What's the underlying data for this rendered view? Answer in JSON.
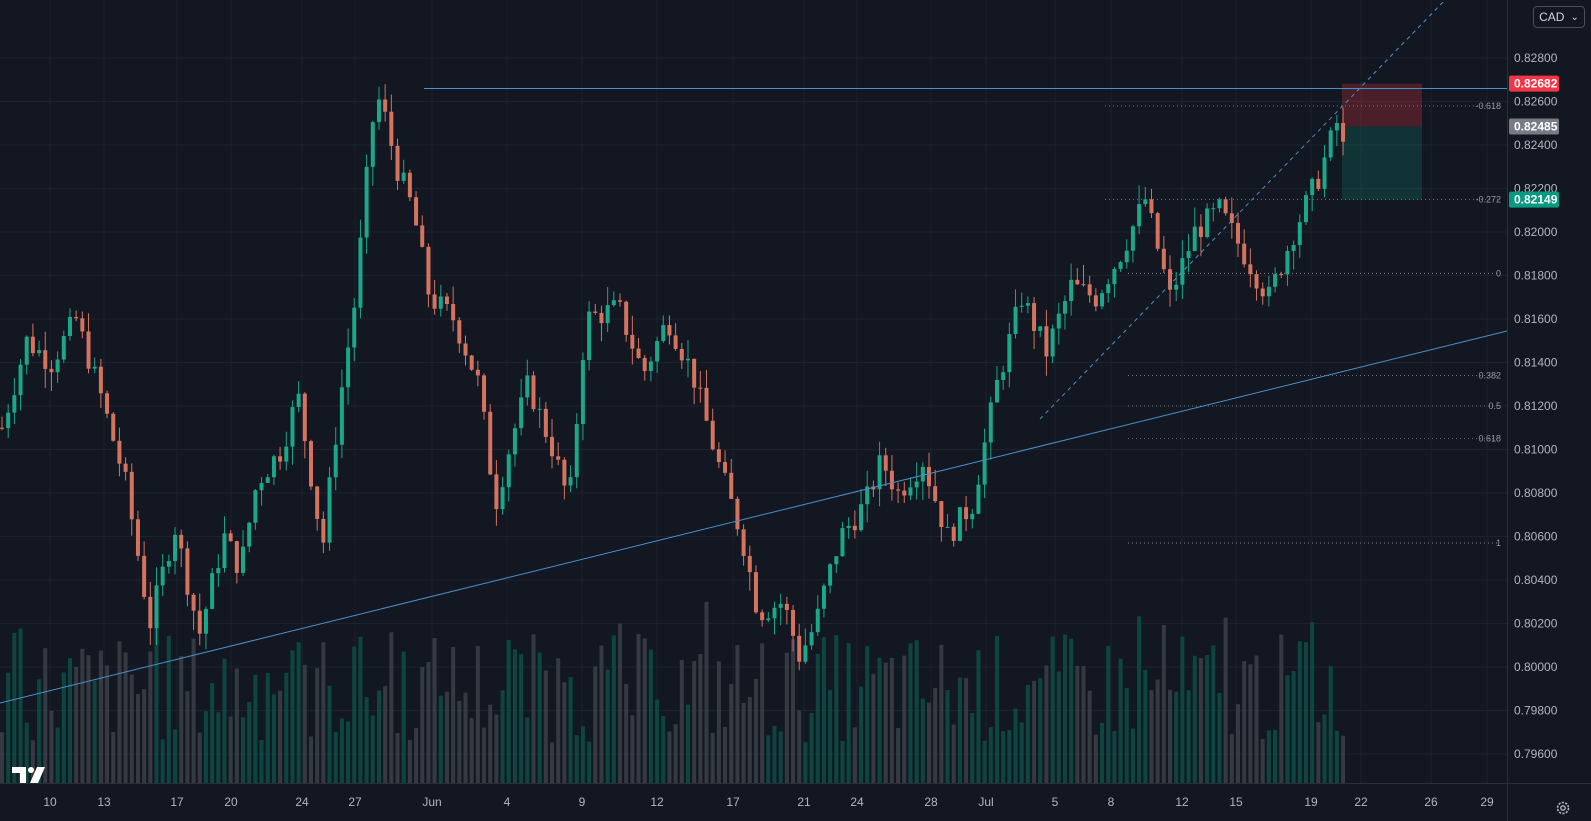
{
  "toolbar": {
    "currency": "CAD"
  },
  "colors": {
    "up": "#089981",
    "down": "#f23645",
    "background": "#131722",
    "trendline": "#4a90c8"
  },
  "price_tags": [
    {
      "price": 0.82682,
      "label": "0.82682",
      "color": "#f23645"
    },
    {
      "price": 0.82485,
      "label": "0.82485",
      "color": "#787b86"
    },
    {
      "price": 0.82149,
      "label": "0.82149",
      "color": "#089981"
    }
  ],
  "fib_levels": [
    {
      "label": "-0.618",
      "price": 0.8258,
      "color": "#2bd9a8"
    },
    {
      "label": "-0.272",
      "price": 0.8215,
      "color": "#2bd9a8"
    },
    {
      "label": "0",
      "price": 0.8181,
      "color": "#b2b5be"
    },
    {
      "label": "0.382",
      "price": 0.8134,
      "color": "#9598a1"
    },
    {
      "label": "0.5",
      "price": 0.812,
      "color": "#9598a1"
    },
    {
      "label": "0.618",
      "price": 0.8105,
      "color": "#9598a1"
    },
    {
      "label": "1",
      "price": 0.8057,
      "color": "#b2b5be"
    }
  ],
  "chart_data": {
    "type": "candlestick",
    "y_axis_labels": [
      "0.82800",
      "0.82600",
      "0.82400",
      "0.82200",
      "0.82000",
      "0.81800",
      "0.81600",
      "0.81400",
      "0.81200",
      "0.81000",
      "0.80800",
      "0.80600",
      "0.80400",
      "0.80200",
      "0.80000",
      "0.79800",
      "0.79600"
    ],
    "ylim": [
      0.7952,
      0.8295
    ],
    "x_axis_labels": [
      "10",
      "13",
      "17",
      "20",
      "24",
      "27",
      "Jun",
      "4",
      "9",
      "12",
      "17",
      "21",
      "24",
      "28",
      "Jul",
      "5",
      "8",
      "12",
      "15",
      "19",
      "22",
      "26",
      "29"
    ],
    "xlim": [
      0,
      218
    ],
    "ohlc_path": [
      [
        0,
        0.811
      ],
      [
        6,
        0.815
      ],
      [
        12,
        0.814
      ],
      [
        18,
        0.816
      ],
      [
        24,
        0.8125
      ],
      [
        30,
        0.8085
      ],
      [
        36,
        0.802
      ],
      [
        42,
        0.8065
      ],
      [
        48,
        0.8015
      ],
      [
        54,
        0.806
      ],
      [
        58,
        0.8045
      ],
      [
        62,
        0.8085
      ],
      [
        68,
        0.81
      ],
      [
        72,
        0.8125
      ],
      [
        78,
        0.8055
      ],
      [
        82,
        0.812
      ],
      [
        86,
        0.817
      ],
      [
        90,
        0.825
      ],
      [
        92,
        0.8262
      ],
      [
        96,
        0.823
      ],
      [
        100,
        0.821
      ],
      [
        104,
        0.817
      ],
      [
        110,
        0.816
      ],
      [
        116,
        0.813
      ],
      [
        120,
        0.8075
      ],
      [
        124,
        0.8105
      ],
      [
        128,
        0.813
      ],
      [
        134,
        0.81
      ],
      [
        138,
        0.8075
      ],
      [
        142,
        0.816
      ],
      [
        150,
        0.8165
      ],
      [
        156,
        0.8135
      ],
      [
        162,
        0.816
      ],
      [
        168,
        0.8135
      ],
      [
        174,
        0.8095
      ],
      [
        180,
        0.806
      ],
      [
        184,
        0.8025
      ],
      [
        190,
        0.803
      ],
      [
        194,
        0.8005
      ],
      [
        198,
        0.802
      ],
      [
        200,
        0.8035
      ],
      [
        204,
        0.806
      ],
      [
        210,
        0.8075
      ],
      [
        214,
        0.8095
      ],
      [
        218,
        0.808
      ]
    ],
    "ohlc_path_2": [
      [
        0,
        0.808
      ],
      [
        4,
        0.8095
      ],
      [
        8,
        0.806
      ],
      [
        12,
        0.8075
      ],
      [
        16,
        0.813
      ],
      [
        20,
        0.817
      ],
      [
        24,
        0.8145
      ],
      [
        28,
        0.8175
      ],
      [
        32,
        0.817
      ],
      [
        36,
        0.819
      ],
      [
        40,
        0.8215
      ],
      [
        44,
        0.817
      ],
      [
        48,
        0.82
      ],
      [
        52,
        0.821
      ],
      [
        56,
        0.819
      ],
      [
        60,
        0.817
      ],
      [
        64,
        0.82
      ],
      [
        68,
        0.8225
      ],
      [
        71,
        0.825
      ],
      [
        74,
        0.8215
      ]
    ],
    "volume_range": [
      0,
      1
    ],
    "levels": {
      "top_line": 0.8266,
      "ray_start": 0.8114
    }
  }
}
